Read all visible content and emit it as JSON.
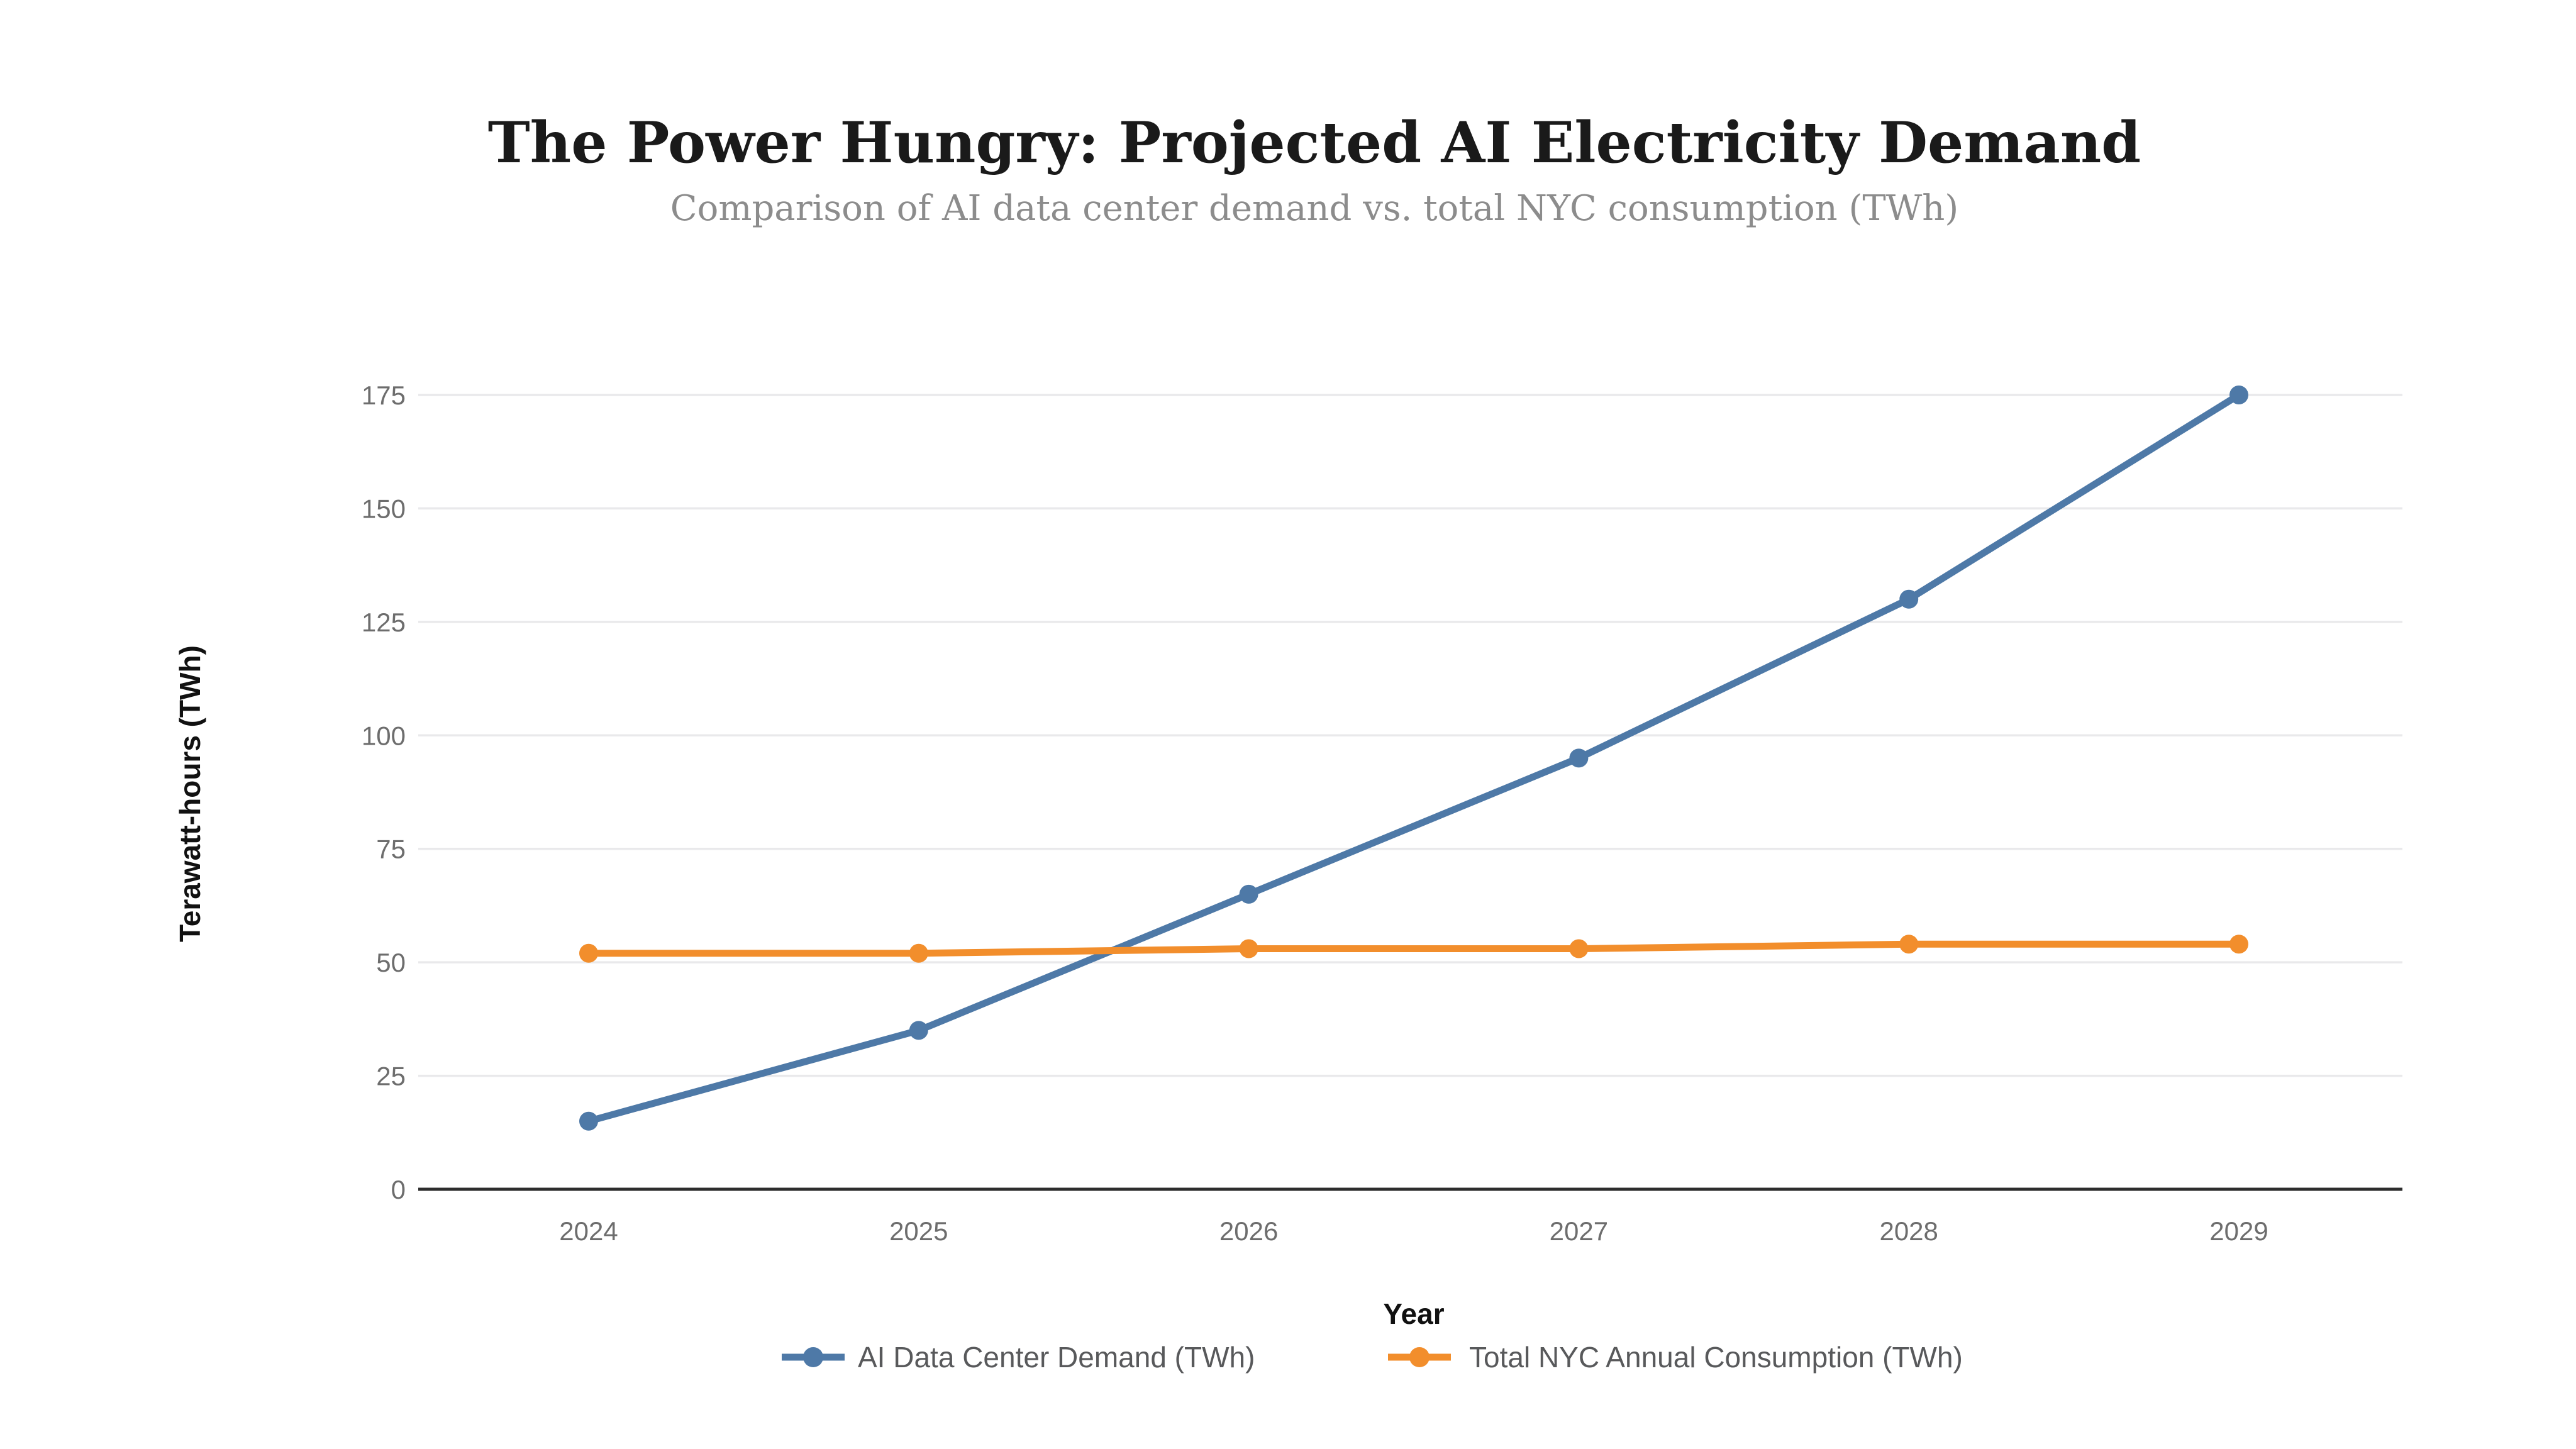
{
  "chart_data": {
    "type": "line",
    "title": "The Power Hungry: Projected AI Electricity Demand",
    "subtitle": "Comparison of AI data center demand vs. total NYC consumption (TWh)",
    "xlabel": "Year",
    "ylabel": "Terawatt-hours (TWh)",
    "categories": [
      "2024",
      "2025",
      "2026",
      "2027",
      "2028",
      "2029"
    ],
    "series": [
      {
        "name": "AI Data Center Demand (TWh)",
        "color": "#4e79a7",
        "values": [
          15,
          35,
          65,
          95,
          130,
          175
        ]
      },
      {
        "name": "Total NYC Annual Consumption (TWh)",
        "color": "#f28e2c",
        "values": [
          52,
          52,
          53,
          53,
          54,
          54
        ]
      }
    ],
    "y_ticks": [
      0,
      25,
      50,
      75,
      100,
      125,
      150,
      175
    ],
    "ylim": [
      0,
      175
    ],
    "grid": "horizontal",
    "legend_position": "bottom",
    "marker": "circle",
    "colors": {
      "background": "#ffffff",
      "gridline": "#e9e9eb",
      "axis_line": "#2d2d2d",
      "tick_label": "#6d6d6d",
      "legend_text": "#58595b",
      "title": "#1a1a1a",
      "subtitle": "#8c8c8c"
    }
  }
}
